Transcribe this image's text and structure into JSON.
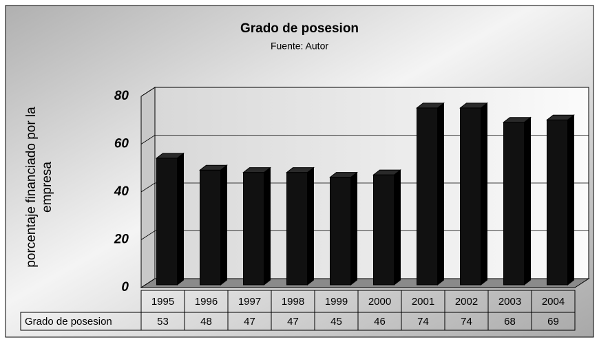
{
  "chart_data": {
    "type": "bar3d",
    "title": "Grado de posesion",
    "subtitle": "Fuente: Autor",
    "y_label": "porcentaje financiado por la empresa",
    "categories": [
      "1995",
      "1996",
      "1997",
      "1998",
      "1999",
      "2000",
      "2001",
      "2002",
      "2003",
      "2004"
    ],
    "series": [
      {
        "name": "Grado de posesion",
        "color": "#111111",
        "values": [
          53,
          48,
          47,
          47,
          45,
          46,
          74,
          74,
          68,
          69
        ]
      }
    ],
    "ylim": [
      0,
      80
    ],
    "yticks": [
      0,
      20,
      40,
      60,
      80
    ],
    "grid": true,
    "data_table": true
  }
}
